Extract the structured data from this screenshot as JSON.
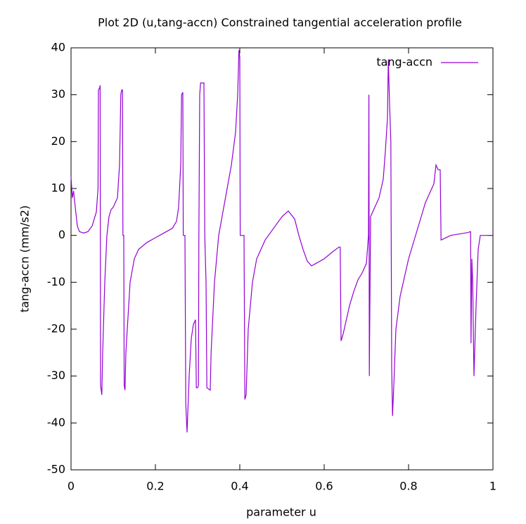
{
  "chart_data": {
    "type": "line",
    "title": "Plot 2D (u,tang-accn) Constrained tangential acceleration profile",
    "xlabel": "parameter u",
    "ylabel": "tang-accn (mm/s2)",
    "x": [
      0,
      0.003,
      0.006,
      0.01,
      0.015,
      0.02,
      0.03,
      0.04,
      0.05,
      0.06,
      0.064,
      0.065,
      0.068,
      0.069,
      0.07,
      0.073,
      0.075,
      0.08,
      0.085,
      0.09,
      0.095,
      0.1,
      0.11,
      0.115,
      0.118,
      0.12,
      0.122,
      0.123,
      0.125,
      0.126,
      0.128,
      0.13,
      0.14,
      0.15,
      0.16,
      0.18,
      0.2,
      0.22,
      0.24,
      0.25,
      0.255,
      0.26,
      0.262,
      0.265,
      0.266,
      0.27,
      0.272,
      0.275,
      0.28,
      0.285,
      0.29,
      0.295,
      0.297,
      0.3,
      0.302,
      0.303,
      0.305,
      0.307,
      0.315,
      0.317,
      0.32,
      0.322,
      0.33,
      0.332,
      0.34,
      0.35,
      0.36,
      0.37,
      0.38,
      0.39,
      0.395,
      0.398,
      0.4,
      0.401,
      0.41,
      0.412,
      0.415,
      0.42,
      0.43,
      0.44,
      0.46,
      0.48,
      0.5,
      0.515,
      0.53,
      0.54,
      0.55,
      0.56,
      0.57,
      0.58,
      0.6,
      0.62,
      0.635,
      0.638,
      0.64,
      0.645,
      0.65,
      0.66,
      0.67,
      0.68,
      0.69,
      0.7,
      0.705,
      0.706,
      0.707,
      0.71,
      0.72,
      0.73,
      0.74,
      0.745,
      0.75,
      0.752,
      0.755,
      0.758,
      0.76,
      0.762,
      0.765,
      0.77,
      0.78,
      0.79,
      0.8,
      0.81,
      0.82,
      0.83,
      0.84,
      0.85,
      0.86,
      0.865,
      0.87,
      0.875,
      0.877,
      0.9,
      0.92,
      0.94,
      0.947,
      0.948,
      0.95,
      0.952,
      0.955,
      0.96,
      0.965,
      0.97,
      1
    ],
    "series": [
      {
        "name": "tang-accn",
        "color": "#9400d3",
        "values": [
          12.5,
          8,
          9.5,
          6,
          2,
          0.8,
          0.5,
          0.8,
          2,
          5,
          10,
          31,
          31.5,
          32,
          -32,
          -34,
          -25,
          -10,
          0,
          4,
          5.5,
          6,
          8,
          15,
          30,
          31,
          31,
          0,
          0,
          -32,
          -33,
          -25,
          -10,
          -5,
          -3,
          -1.5,
          -0.5,
          0.5,
          1.5,
          3,
          6,
          15,
          30,
          30.5,
          0,
          0,
          -36,
          -42,
          -30,
          -22,
          -19,
          -18,
          -32.5,
          -32.5,
          -32,
          0,
          30,
          32.5,
          32.5,
          0,
          -10,
          -32.5,
          -33,
          -25,
          -10,
          0,
          5,
          10,
          15,
          22,
          30,
          39.5,
          38,
          0,
          0,
          -35,
          -34,
          -20,
          -10,
          -5,
          -1,
          1.5,
          4,
          5.2,
          3.5,
          0,
          -3,
          -5.5,
          -6.5,
          -6,
          -5,
          -3.5,
          -2.5,
          -2.5,
          -22.5,
          -21,
          -19,
          -15,
          -12,
          -9.5,
          -8,
          -6,
          0,
          30,
          -30,
          4,
          6,
          8,
          12,
          18,
          25,
          37.5,
          28,
          20,
          -28,
          -38.5,
          -32,
          -20,
          -13,
          -9,
          -5,
          -2,
          1,
          4,
          7,
          9,
          11,
          15,
          14,
          14,
          -1,
          0,
          0.3,
          0.6,
          0.8,
          -23,
          -5,
          -10,
          -30,
          -15,
          -3,
          0,
          0
        ]
      }
    ],
    "xlim": [
      0,
      1
    ],
    "xticks": [
      0,
      0.2,
      0.4,
      0.6,
      0.8,
      1
    ],
    "ylim": [
      -50,
      40
    ],
    "yticks": [
      -50,
      -40,
      -30,
      -20,
      -10,
      0,
      10,
      20,
      30,
      40
    ],
    "legend": "top right",
    "grid": false
  }
}
